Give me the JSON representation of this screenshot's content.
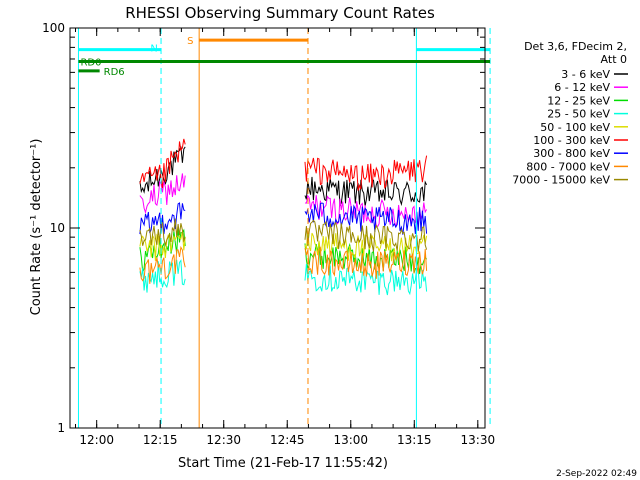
{
  "chart_data": {
    "type": "line",
    "title": "RHESSI Observing Summary Count Rates",
    "xlabel": "Start Time (21-Feb-17 11:55:42)",
    "ylabel": "Count Rate (s⁻¹ detector⁻¹)",
    "yscale": "log",
    "ylim": [
      1,
      100
    ],
    "xlim_minutes_after_start": [
      -2,
      96
    ],
    "grid": false,
    "legend_placement": "right",
    "legend_header": [
      "Det 3,6, FDecim 2,",
      "Att 0"
    ],
    "x_ticks": [
      {
        "t": 4.3,
        "label": "12:00"
      },
      {
        "t": 19.3,
        "label": "12:15"
      },
      {
        "t": 34.3,
        "label": "12:30"
      },
      {
        "t": 49.3,
        "label": "12:45"
      },
      {
        "t": 64.3,
        "label": "13:00"
      },
      {
        "t": 79.3,
        "label": "13:15"
      },
      {
        "t": 94.3,
        "label": "13:30"
      }
    ],
    "y_ticks": [
      {
        "v": 1,
        "label": "1"
      },
      {
        "v": 10,
        "label": "10"
      },
      {
        "v": 100,
        "label": "100"
      }
    ],
    "series": [
      {
        "name": "3 - 6 keV",
        "color": "#000000",
        "segments": [
          {
            "t": [
              14.5,
              25.2
            ],
            "base": [
              15,
              19,
              23
            ]
          },
          {
            "t": [
              53.5,
              82.2
            ],
            "base": [
              16,
              15,
              15
            ]
          }
        ]
      },
      {
        "name": "6 - 12 keV",
        "color": "#ff00ff",
        "segments": [
          {
            "t": [
              14.5,
              25.2
            ],
            "base": [
              13,
              15,
              17
            ]
          },
          {
            "t": [
              53.5,
              82.2
            ],
            "base": [
              13,
              12,
              12
            ]
          }
        ]
      },
      {
        "name": "12 - 25 keV",
        "color": "#00dd00",
        "segments": [
          {
            "t": [
              14.5,
              25.2
            ],
            "base": [
              7,
              8,
              9
            ]
          },
          {
            "t": [
              53.5,
              82.2
            ],
            "base": [
              7.5,
              7,
              7
            ]
          }
        ]
      },
      {
        "name": "25 - 50 keV",
        "color": "#00ffdd",
        "segments": [
          {
            "t": [
              14.5,
              25.2
            ],
            "base": [
              5.5,
              6,
              6
            ]
          },
          {
            "t": [
              53.5,
              82.2
            ],
            "base": [
              5.8,
              5.5,
              5.5
            ]
          }
        ]
      },
      {
        "name": "50 - 100 keV",
        "color": "#dddd00",
        "segments": [
          {
            "t": [
              14.5,
              25.2
            ],
            "base": [
              8,
              8,
              9
            ]
          },
          {
            "t": [
              53.5,
              82.2
            ],
            "base": [
              8.5,
              8,
              8
            ]
          }
        ]
      },
      {
        "name": "100 - 300 keV",
        "color": "#ff0000",
        "segments": [
          {
            "t": [
              14.5,
              25.2
            ],
            "base": [
              17,
              18,
              26
            ]
          },
          {
            "t": [
              53.5,
              82.2
            ],
            "base": [
              20,
              18,
              20
            ]
          }
        ]
      },
      {
        "name": "300 - 800 keV",
        "color": "#0000ff",
        "segments": [
          {
            "t": [
              14.5,
              25.2
            ],
            "base": [
              10,
              11,
              12
            ]
          },
          {
            "t": [
              53.5,
              82.2
            ],
            "base": [
              12,
              11,
              11
            ]
          }
        ]
      },
      {
        "name": "800 - 7000 keV",
        "color": "#ff8800",
        "segments": [
          {
            "t": [
              14.5,
              25.2
            ],
            "base": [
              6,
              6.5,
              7
            ]
          },
          {
            "t": [
              53.5,
              82.2
            ],
            "base": [
              7,
              6.5,
              7
            ]
          }
        ]
      },
      {
        "name": "7000 - 15000 keV",
        "color": "#998800",
        "segments": [
          {
            "t": [
              14.5,
              25.2
            ],
            "base": [
              9,
              9.5,
              10
            ]
          },
          {
            "t": [
              53.5,
              82.2
            ],
            "base": [
              9.5,
              9,
              9
            ]
          }
        ]
      }
    ],
    "vertical_lines": [
      {
        "t": 0,
        "color": "#00ffff",
        "dash": false
      },
      {
        "t": 19.5,
        "color": "#00ffff",
        "dash": true
      },
      {
        "t": 28.5,
        "color": "#ff8800",
        "dash": false
      },
      {
        "t": 54.2,
        "color": "#ff8800",
        "dash": true
      },
      {
        "t": 79.8,
        "color": "#00ffff",
        "dash": false
      },
      {
        "t": 97.2,
        "color": "#00ffff",
        "dash": true
      }
    ],
    "bars": [
      {
        "label": "",
        "color": "#00ffff",
        "t": [
          0,
          19.5
        ],
        "y": 78
      },
      {
        "label": "N",
        "color": "#00ffff",
        "t": [
          19.8,
          20.8
        ],
        "y": 80
      },
      {
        "label": "S",
        "color": "#ff8800",
        "t": [
          28.5,
          54.2
        ],
        "y": 87
      },
      {
        "label": "",
        "color": "#00ffff",
        "t": [
          79.8,
          97.2
        ],
        "y": 78
      },
      {
        "label": "RD0",
        "color": "#008800",
        "t": [
          0,
          97.2
        ],
        "y": 68
      },
      {
        "label": "RD6",
        "color": "#008800",
        "t": [
          0,
          5
        ],
        "y": 61
      }
    ],
    "footer_timestamp": "2-Sep-2022 02:49"
  }
}
